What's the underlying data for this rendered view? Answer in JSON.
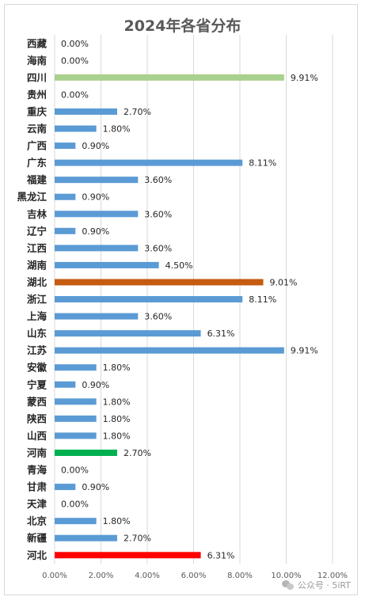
{
  "chart_data": {
    "type": "bar",
    "orientation": "horizontal",
    "title": "2024年各省分布",
    "xlabel": "",
    "ylabel": "",
    "xlim": [
      0,
      12
    ],
    "x_ticks": [
      "0.00%",
      "2.00%",
      "4.00%",
      "6.00%",
      "8.00%",
      "10.00%",
      "12.00%"
    ],
    "grid": true,
    "categories": [
      "西藏",
      "海南",
      "四川",
      "贵州",
      "重庆",
      "云南",
      "广西",
      "广东",
      "福建",
      "黑龙江",
      "吉林",
      "辽宁",
      "江西",
      "湖南",
      "湖北",
      "浙江",
      "上海",
      "山东",
      "江苏",
      "安徽",
      "宁夏",
      "蒙西",
      "陕西",
      "山西",
      "河南",
      "青海",
      "甘肃",
      "天津",
      "北京",
      "新疆",
      "河北"
    ],
    "values": [
      0,
      0,
      9.91,
      0,
      2.7,
      1.8,
      0.9,
      8.11,
      3.6,
      0.9,
      3.6,
      0.9,
      3.6,
      4.5,
      9.01,
      8.11,
      3.6,
      6.31,
      9.91,
      1.8,
      0.9,
      1.8,
      1.8,
      1.8,
      2.7,
      0,
      0.9,
      0,
      1.8,
      2.7,
      6.31
    ],
    "value_labels": [
      "0.00%",
      "0.00%",
      "9.91%",
      "0.00%",
      "2.70%",
      "1.80%",
      "0.90%",
      "8.11%",
      "3.60%",
      "0.90%",
      "3.60%",
      "0.90%",
      "3.60%",
      "4.50%",
      "9.01%",
      "8.11%",
      "3.60%",
      "6.31%",
      "9.91%",
      "1.80%",
      "0.90%",
      "1.80%",
      "1.80%",
      "1.80%",
      "2.70%",
      "0.00%",
      "0.90%",
      "0.00%",
      "1.80%",
      "2.70%",
      "6.31%"
    ],
    "colors": [
      "#5b9bd5",
      "#5b9bd5",
      "#a9d18e",
      "#5b9bd5",
      "#5b9bd5",
      "#5b9bd5",
      "#5b9bd5",
      "#5b9bd5",
      "#5b9bd5",
      "#5b9bd5",
      "#5b9bd5",
      "#5b9bd5",
      "#5b9bd5",
      "#5b9bd5",
      "#c55a11",
      "#5b9bd5",
      "#5b9bd5",
      "#5b9bd5",
      "#5b9bd5",
      "#5b9bd5",
      "#5b9bd5",
      "#5b9bd5",
      "#5b9bd5",
      "#5b9bd5",
      "#00b050",
      "#5b9bd5",
      "#5b9bd5",
      "#5b9bd5",
      "#5b9bd5",
      "#5b9bd5",
      "#ff0000"
    ]
  },
  "watermark": {
    "icon": "wechat-icon",
    "text": "公众号 · 5iRT"
  }
}
